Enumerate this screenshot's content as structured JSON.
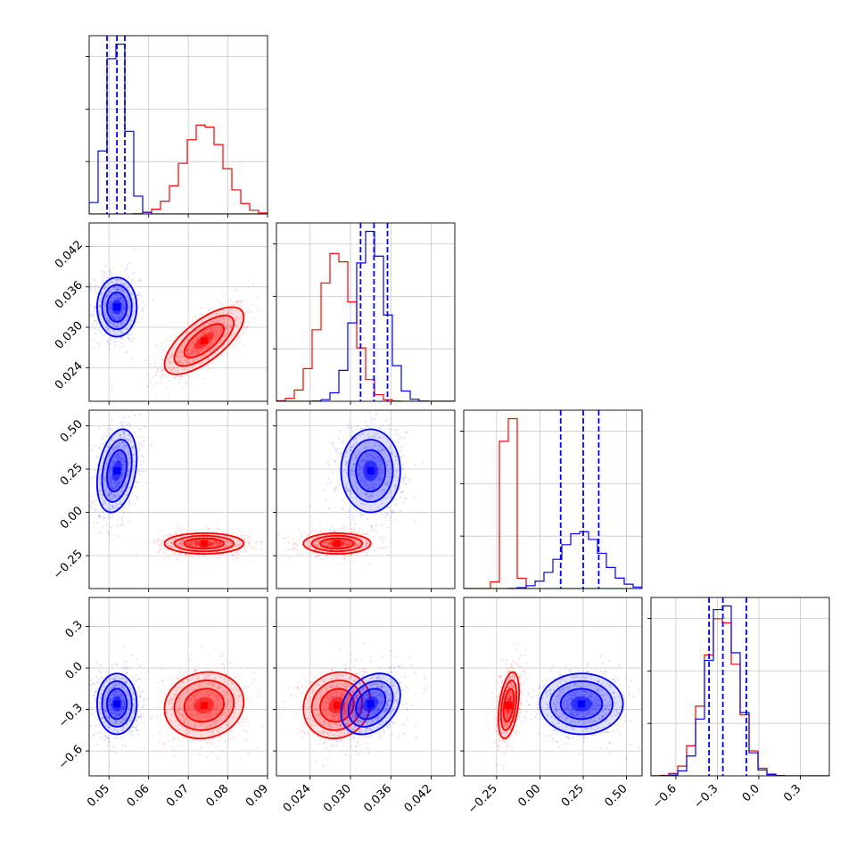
{
  "chart_data": {
    "type": "corner",
    "title": "",
    "colors": {
      "red": "#ff0000",
      "blue": "#0000ff",
      "grid": "#c8c8c8",
      "axis": "#000000"
    },
    "params": [
      {
        "range": [
          0.045,
          0.09
        ],
        "ticks": [
          0.05,
          0.06,
          0.07,
          0.08,
          0.09
        ],
        "tick_labels": [
          "0.05",
          "0.06",
          "0.07",
          "0.08",
          "0.09"
        ]
      },
      {
        "range": [
          0.019,
          0.0455
        ],
        "ticks": [
          0.024,
          0.03,
          0.036,
          0.042
        ],
        "tick_labels": [
          "0.024",
          "0.030",
          "0.036",
          "0.042"
        ]
      },
      {
        "range": [
          -0.44,
          0.59
        ],
        "ticks": [
          -0.25,
          0.0,
          0.25,
          0.5
        ],
        "tick_labels": [
          "−0.25",
          "0.00",
          "0.25",
          "0.50"
        ]
      },
      {
        "range": [
          -0.78,
          0.51
        ],
        "ticks": [
          -0.6,
          -0.3,
          0.0,
          0.3
        ],
        "tick_labels": [
          "−0.6",
          "−0.3",
          "0.0",
          "0.3"
        ]
      }
    ],
    "series": [
      {
        "color": "red",
        "mean": [
          0.074,
          0.028,
          -0.18,
          -0.27
        ],
        "std": [
          0.005,
          0.0025,
          0.03,
          0.12
        ],
        "corr": [
          [
            1,
            0.7,
            0,
            0.1
          ],
          [
            0.7,
            1,
            0,
            0.1
          ],
          [
            0,
            0,
            1,
            0.4
          ],
          [
            0.1,
            0.1,
            0.4,
            1
          ]
        ]
      },
      {
        "color": "blue",
        "mean": [
          0.052,
          0.033,
          0.24,
          -0.26
        ],
        "std": [
          0.0025,
          0.0022,
          0.12,
          0.11
        ],
        "corr": [
          [
            1,
            0,
            0.3,
            0
          ],
          [
            0,
            1,
            0,
            0.3
          ],
          [
            0.3,
            0,
            1,
            0
          ],
          [
            0,
            0.3,
            0,
            1
          ]
        ]
      }
    ],
    "quantile_lines": [
      [
        0.0495,
        0.052,
        0.054
      ],
      [
        0.0315,
        0.0335,
        0.0355
      ],
      [
        0.12,
        0.25,
        0.34
      ],
      [
        -0.36,
        -0.26,
        -0.09
      ]
    ],
    "hist_bins": 20,
    "contour_levels": [
      0.5,
      1.0,
      1.5,
      2.0
    ],
    "grid": true
  }
}
